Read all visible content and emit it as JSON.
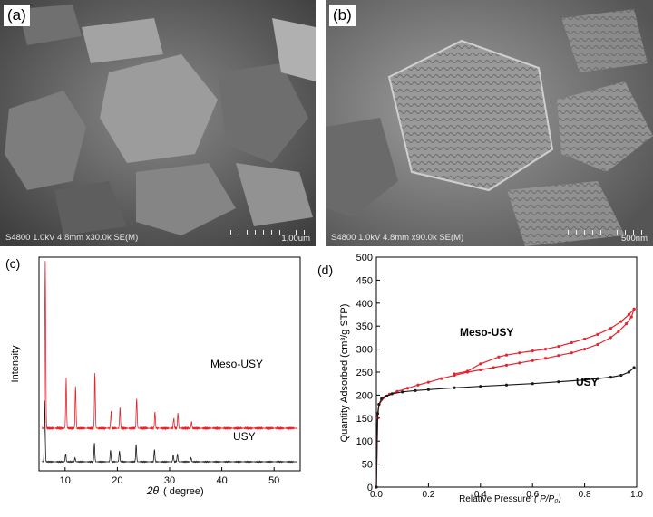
{
  "sem_a": {
    "tag": "(a)",
    "info": "S4800 1.0kV 4.8mm x30.0k SE(M)",
    "scale": "1.00um"
  },
  "sem_b": {
    "tag": "(b)",
    "info": "S4800 1.0kV 4.8mm x90.0k SE(M)",
    "scale": "500nm"
  },
  "xrd_panel": {
    "tag": "(c)",
    "ylabel": "Intensity",
    "xlabel_theta": "2θ",
    "xlabel_unit": "( degree)",
    "label_meso": "Meso-USY",
    "label_usy": "USY"
  },
  "iso_panel": {
    "tag": "(d)",
    "ylabel": "Quantity Adsorbed (cm³/g STP)",
    "xlabel_text": "Relative Pressure",
    "xlabel_sym": "( P/P₀)",
    "label_meso": "Meso-USY",
    "label_usy": "USY"
  },
  "colors": {
    "meso": "#e8232a",
    "usy": "#1a1a1a"
  },
  "chart_data": [
    {
      "type": "line",
      "title": "",
      "xlabel": "2θ ( degree)",
      "ylabel": "Intensity",
      "xlim": [
        5,
        55
      ],
      "xticks": [
        10,
        20,
        30,
        40,
        50
      ],
      "series": [
        {
          "name": "Meso-USY",
          "color": "#e8232a",
          "peaks": [
            [
              6.2,
              1.0
            ],
            [
              10.2,
              0.3
            ],
            [
              12.0,
              0.25
            ],
            [
              15.7,
              0.33
            ],
            [
              18.8,
              0.1
            ],
            [
              20.5,
              0.12
            ],
            [
              23.7,
              0.18
            ],
            [
              27.2,
              0.1
            ],
            [
              30.8,
              0.06
            ],
            [
              31.6,
              0.09
            ],
            [
              34.2,
              0.04
            ]
          ]
        },
        {
          "name": "USY",
          "color": "#1a1a1a",
          "peaks": [
            [
              6.1,
              0.9
            ],
            [
              10.1,
              0.12
            ],
            [
              11.9,
              0.06
            ],
            [
              15.6,
              0.28
            ],
            [
              18.7,
              0.17
            ],
            [
              20.4,
              0.16
            ],
            [
              23.6,
              0.25
            ],
            [
              27.1,
              0.18
            ],
            [
              30.7,
              0.1
            ],
            [
              31.5,
              0.12
            ],
            [
              34.1,
              0.06
            ]
          ]
        }
      ]
    },
    {
      "type": "line",
      "title": "",
      "xlabel": "Relative Pressure ( P/P₀)",
      "ylabel": "Quantity Adsorbed (cm³/g STP)",
      "xlim": [
        0,
        1.0
      ],
      "ylim": [
        0,
        500
      ],
      "xticks": [
        0.0,
        0.2,
        0.4,
        0.6,
        0.8,
        1.0
      ],
      "yticks": [
        0,
        50,
        100,
        150,
        200,
        250,
        300,
        350,
        400,
        450,
        500
      ],
      "series": [
        {
          "name": "Meso-USY adsorption",
          "color": "#e8232a",
          "x": [
            0.0,
            0.005,
            0.01,
            0.03,
            0.05,
            0.08,
            0.12,
            0.16,
            0.2,
            0.25,
            0.3,
            0.35,
            0.4,
            0.45,
            0.5,
            0.55,
            0.6,
            0.65,
            0.7,
            0.75,
            0.8,
            0.85,
            0.9,
            0.93,
            0.96,
            0.98,
            0.99
          ],
          "y": [
            0,
            150,
            180,
            195,
            202,
            208,
            215,
            222,
            228,
            236,
            243,
            250,
            255,
            260,
            265,
            270,
            275,
            280,
            286,
            292,
            300,
            310,
            325,
            338,
            355,
            370,
            387
          ]
        },
        {
          "name": "Meso-USY desorption",
          "color": "#e8232a",
          "x": [
            0.99,
            0.97,
            0.94,
            0.9,
            0.85,
            0.8,
            0.75,
            0.7,
            0.65,
            0.6,
            0.55,
            0.5,
            0.47,
            0.4,
            0.35,
            0.3
          ],
          "y": [
            387,
            375,
            360,
            345,
            332,
            322,
            314,
            306,
            300,
            296,
            292,
            287,
            283,
            268,
            252,
            246
          ]
        },
        {
          "name": "USY",
          "color": "#1a1a1a",
          "x": [
            0.0,
            0.005,
            0.01,
            0.02,
            0.04,
            0.06,
            0.1,
            0.15,
            0.2,
            0.3,
            0.4,
            0.5,
            0.6,
            0.7,
            0.8,
            0.85,
            0.9,
            0.94,
            0.97,
            0.99
          ],
          "y": [
            0,
            160,
            180,
            192,
            198,
            203,
            207,
            210,
            212,
            216,
            219,
            222,
            225,
            229,
            233,
            236,
            239,
            243,
            250,
            260
          ]
        }
      ]
    }
  ]
}
